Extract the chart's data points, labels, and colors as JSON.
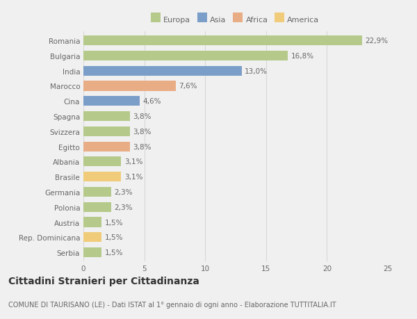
{
  "categories": [
    "Romania",
    "Bulgaria",
    "India",
    "Marocco",
    "Cina",
    "Spagna",
    "Svizzera",
    "Egitto",
    "Albania",
    "Brasile",
    "Germania",
    "Polonia",
    "Austria",
    "Rep. Dominicana",
    "Serbia"
  ],
  "values": [
    22.9,
    16.8,
    13.0,
    7.6,
    4.6,
    3.8,
    3.8,
    3.8,
    3.1,
    3.1,
    2.3,
    2.3,
    1.5,
    1.5,
    1.5
  ],
  "labels": [
    "22,9%",
    "16,8%",
    "13,0%",
    "7,6%",
    "4,6%",
    "3,8%",
    "3,8%",
    "3,8%",
    "3,1%",
    "3,1%",
    "2,3%",
    "2,3%",
    "1,5%",
    "1,5%",
    "1,5%"
  ],
  "colors": [
    "#b5c98a",
    "#b5c98a",
    "#7b9ec9",
    "#e8ad84",
    "#7b9ec9",
    "#b5c98a",
    "#b5c98a",
    "#e8ad84",
    "#b5c98a",
    "#f0cc7a",
    "#b5c98a",
    "#b5c98a",
    "#b5c98a",
    "#f0cc7a",
    "#b5c98a"
  ],
  "legend_labels": [
    "Europa",
    "Asia",
    "Africa",
    "America"
  ],
  "legend_colors": [
    "#b5c98a",
    "#7b9ec9",
    "#e8ad84",
    "#f0cc7a"
  ],
  "xlim": [
    0,
    25
  ],
  "xticks": [
    0,
    5,
    10,
    15,
    20,
    25
  ],
  "title": "Cittadini Stranieri per Cittadinanza",
  "subtitle": "COMUNE DI TAURISANO (LE) - Dati ISTAT al 1° gennaio di ogni anno - Elaborazione TUTTITALIA.IT",
  "background_color": "#f0f0f0",
  "plot_bg_color": "#f0f0f0",
  "grid_color": "#d8d8d8",
  "text_color": "#666666",
  "label_fontsize": 7.5,
  "tick_fontsize": 7.5,
  "title_fontsize": 10,
  "subtitle_fontsize": 7.0,
  "bar_height": 0.65
}
